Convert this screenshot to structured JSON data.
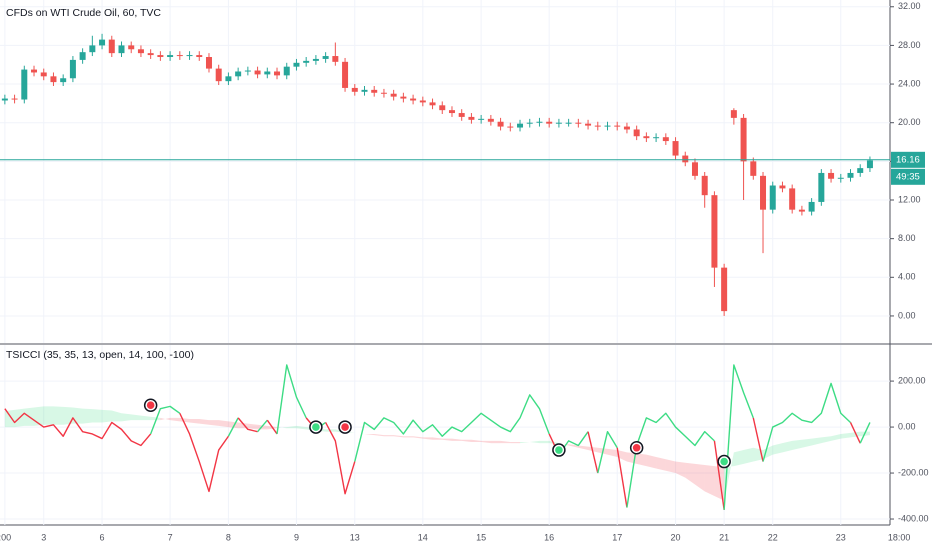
{
  "chart_data": [
    {
      "type": "candlestick",
      "title": "CFDs on WTI Crude Oil, 60, TVC",
      "categories": [
        ":00",
        null,
        null,
        null,
        "3",
        null,
        null,
        null,
        null,
        null,
        "6",
        null,
        null,
        null,
        null,
        null,
        null,
        "7",
        null,
        null,
        null,
        null,
        null,
        "8",
        null,
        null,
        null,
        null,
        null,
        null,
        "9",
        null,
        null,
        null,
        null,
        null,
        "13",
        null,
        null,
        null,
        null,
        null,
        null,
        "14",
        null,
        null,
        null,
        null,
        null,
        "15",
        null,
        null,
        null,
        null,
        null,
        null,
        "16",
        null,
        null,
        null,
        null,
        null,
        null,
        "17",
        null,
        null,
        null,
        null,
        null,
        "20",
        null,
        null,
        null,
        null,
        "21",
        null,
        null,
        null,
        null,
        "22",
        null,
        null,
        null,
        null,
        null,
        null,
        "23",
        null,
        null,
        null,
        null,
        null,
        "18:00"
      ],
      "open": [
        22.3,
        22.5,
        22.4,
        25.5,
        25.2,
        24.8,
        24.2,
        24.6,
        26.5,
        27.3,
        28,
        28.6,
        27.2,
        28,
        27.6,
        27.2,
        27,
        26.8,
        27,
        26.9,
        27,
        26.8,
        25.6,
        24.3,
        24.8,
        25.3,
        25.4,
        25,
        25.3,
        24.9,
        25.8,
        26.2,
        26.4,
        26.6,
        26.9,
        26.3,
        23.6,
        23.2,
        23.4,
        23.1,
        23,
        22.7,
        22.5,
        22.3,
        22.1,
        21.8,
        21.3,
        21,
        20.6,
        20.3,
        20.4,
        20.1,
        19.6,
        19.5,
        19.9,
        20,
        20.1,
        19.9,
        20,
        20,
        19.9,
        19.7,
        19.6,
        19.7,
        19.6,
        19.3,
        18.6,
        18.4,
        18.5,
        18.1,
        16.6,
        15.9,
        14.5,
        12.5,
        5,
        21.3,
        20.5,
        16,
        14.5,
        11,
        13.5,
        13.2,
        11,
        10.8,
        11.8,
        14.8,
        14.2,
        14.3,
        14.8,
        15.3,
        null,
        null,
        null
      ],
      "high": [
        22.9,
        22.9,
        25.9,
        25.9,
        25.6,
        25.2,
        25,
        26.9,
        27.7,
        29,
        29.2,
        29,
        28.4,
        28.4,
        28,
        27.6,
        27.4,
        27.4,
        27.4,
        27.4,
        27.4,
        27.2,
        26,
        25.2,
        25.7,
        25.8,
        25.8,
        25.7,
        25.7,
        26.2,
        26.6,
        26.8,
        27,
        27.3,
        28.3,
        26.7,
        24,
        23.8,
        23.8,
        23.5,
        23.4,
        23.1,
        22.9,
        22.7,
        22.5,
        22.2,
        21.7,
        21.4,
        21,
        20.8,
        20.8,
        20.5,
        20,
        20.3,
        20.4,
        20.5,
        20.5,
        20.4,
        20.4,
        20.4,
        20.3,
        20.1,
        20.1,
        20.1,
        20,
        19.7,
        19,
        18.9,
        18.9,
        18.5,
        17,
        16.3,
        14.9,
        12.9,
        5.4,
        21.5,
        20.9,
        16.4,
        14.9,
        13.9,
        13.9,
        13.6,
        11.4,
        12.2,
        15.2,
        15.2,
        14.7,
        15.2,
        15.7,
        16.5,
        null,
        null,
        null
      ],
      "low": [
        21.9,
        22,
        22,
        24.8,
        24.4,
        23.8,
        23.8,
        24.2,
        26.1,
        26.9,
        27.6,
        26.8,
        26.8,
        27.2,
        26.8,
        26.6,
        26.4,
        26.4,
        26.5,
        26.5,
        26.4,
        25.2,
        23.9,
        23.9,
        24.4,
        24.9,
        24.6,
        24.6,
        24.5,
        24.5,
        25.4,
        25.8,
        26,
        26.2,
        25.9,
        23.2,
        22.8,
        22.8,
        22.7,
        22.6,
        22.3,
        22.1,
        21.9,
        21.7,
        21.4,
        20.9,
        20.6,
        20.2,
        19.9,
        19.9,
        19.7,
        19.2,
        19.1,
        19.1,
        19.5,
        19.6,
        19.5,
        19.5,
        19.6,
        19.5,
        19.3,
        19.2,
        19.2,
        19.2,
        18.9,
        18.2,
        18,
        18,
        17.7,
        16.2,
        15.5,
        14.1,
        11.2,
        3,
        0,
        19.8,
        12,
        14.1,
        6.5,
        10.6,
        12.8,
        10.6,
        10.4,
        10.4,
        11.4,
        13.8,
        13.8,
        13.9,
        14.4,
        14.9,
        null,
        null,
        null
      ],
      "close": [
        22.5,
        22.4,
        25.5,
        25.2,
        24.8,
        24.2,
        24.6,
        26.5,
        27.3,
        28,
        28.6,
        27.2,
        28,
        27.6,
        27.2,
        27,
        26.8,
        27,
        26.9,
        27,
        26.8,
        25.6,
        24.3,
        24.8,
        25.3,
        25.4,
        25,
        25.3,
        24.9,
        25.8,
        26.2,
        26.4,
        26.6,
        26.9,
        26.3,
        23.6,
        23.2,
        23.4,
        23.1,
        23,
        22.7,
        22.5,
        22.3,
        22.1,
        21.8,
        21.3,
        21,
        20.6,
        20.3,
        20.4,
        20.1,
        19.6,
        19.5,
        19.9,
        20,
        20.1,
        19.9,
        20,
        20,
        19.9,
        19.7,
        19.6,
        19.7,
        19.6,
        19.3,
        18.6,
        18.4,
        18.5,
        18.1,
        16.6,
        15.9,
        14.5,
        12.5,
        5,
        0.5,
        20.5,
        16,
        14.5,
        11,
        13.5,
        13.2,
        11,
        10.8,
        11.8,
        14.8,
        14.2,
        14.3,
        14.8,
        15.3,
        16.1,
        null,
        null,
        null
      ],
      "up_color": "#26a69a",
      "down_color": "#ef5350",
      "last_price": 16.16,
      "last_price_color": "#26a69a",
      "countdown": "49:35",
      "ylim": [
        -2.8,
        32.7
      ],
      "yticks": [
        {
          "value": 0,
          "label": "0.00"
        },
        {
          "value": 4,
          "label": "4.00"
        },
        {
          "value": 8,
          "label": "8.00"
        },
        {
          "value": 12,
          "label": "12.00"
        },
        {
          "value": 16,
          "label": "16.00"
        },
        {
          "value": 20,
          "label": "20.00"
        },
        {
          "value": 24,
          "label": "24.00"
        },
        {
          "value": 28,
          "label": "28.00"
        },
        {
          "value": 32,
          "label": "32.00"
        }
      ],
      "grid": true
    },
    {
      "type": "line",
      "title": "TSICCI (35, 35, 13, open, 14, 100, -100)",
      "values": [
        80,
        20,
        60,
        30,
        0,
        10,
        -40,
        40,
        -20,
        -30,
        -50,
        20,
        -10,
        -60,
        -80,
        -30,
        80,
        90,
        60,
        -30,
        -150,
        -280,
        -100,
        -40,
        40,
        -10,
        -20,
        30,
        -30,
        270,
        130,
        40,
        -10,
        20,
        -60,
        -290,
        -150,
        20,
        -10,
        40,
        20,
        -30,
        30,
        -20,
        10,
        -40,
        0,
        -20,
        20,
        60,
        30,
        0,
        -20,
        40,
        140,
        80,
        -30,
        -120,
        -60,
        -80,
        -20,
        -200,
        -20,
        -90,
        -350,
        -80,
        40,
        20,
        60,
        0,
        -40,
        -80,
        -20,
        -60,
        -360,
        270,
        150,
        40,
        -150,
        0,
        20,
        60,
        30,
        20,
        60,
        190,
        60,
        20,
        -70,
        20,
        null,
        null,
        null
      ],
      "band_fast": [
        70,
        75,
        80,
        85,
        90,
        90,
        88,
        85,
        80,
        78,
        75,
        72,
        60,
        55,
        50,
        45,
        40,
        30,
        25,
        20,
        15,
        10,
        5,
        0,
        -5,
        -5,
        -10,
        -10,
        -5,
        0,
        5,
        0,
        -5,
        -10,
        -10,
        -20,
        -25,
        -30,
        -35,
        -40,
        -40,
        -45,
        -45,
        -50,
        -55,
        -55,
        -60,
        -60,
        -65,
        -65,
        -70,
        -70,
        -70,
        -70,
        -65,
        -60,
        -60,
        -70,
        -80,
        -90,
        -100,
        -110,
        -120,
        -130,
        -150,
        -160,
        -170,
        -180,
        -190,
        -200,
        -220,
        -250,
        -280,
        -300,
        -320,
        -110,
        -100,
        -90,
        -100,
        -80,
        -70,
        -60,
        -55,
        -50,
        -45,
        -40,
        -30,
        -25,
        -20,
        -20,
        null,
        null,
        null
      ],
      "band_slow": [
        0,
        0,
        5,
        5,
        10,
        10,
        10,
        15,
        15,
        20,
        20,
        25,
        25,
        30,
        30,
        30,
        30,
        40,
        40,
        35,
        35,
        30,
        30,
        25,
        20,
        15,
        10,
        5,
        0,
        -5,
        -5,
        -10,
        -15,
        -20,
        -20,
        -25,
        -25,
        -30,
        -30,
        -35,
        -35,
        -40,
        -40,
        -45,
        -45,
        -50,
        -50,
        -55,
        -55,
        -60,
        -60,
        -60,
        -65,
        -65,
        -65,
        -70,
        -70,
        -75,
        -75,
        -80,
        -85,
        -90,
        -95,
        -100,
        -110,
        -115,
        -120,
        -130,
        -140,
        -150,
        -155,
        -160,
        -165,
        -170,
        -175,
        -170,
        -160,
        -150,
        -140,
        -120,
        -110,
        -100,
        -90,
        -80,
        -70,
        -60,
        -50,
        -45,
        -40,
        -35,
        null,
        null,
        null
      ],
      "signals": [
        null,
        null,
        null,
        null,
        null,
        null,
        null,
        null,
        null,
        null,
        null,
        null,
        null,
        null,
        null,
        95,
        null,
        null,
        null,
        null,
        null,
        null,
        null,
        null,
        null,
        null,
        null,
        null,
        null,
        null,
        null,
        null,
        0,
        null,
        null,
        0,
        null,
        null,
        null,
        null,
        null,
        null,
        null,
        null,
        null,
        null,
        null,
        null,
        null,
        null,
        null,
        null,
        null,
        null,
        null,
        null,
        null,
        -100,
        null,
        null,
        null,
        null,
        null,
        null,
        null,
        -90,
        null,
        null,
        null,
        null,
        null,
        null,
        null,
        null,
        -150,
        null,
        null,
        null,
        null,
        null,
        null,
        null,
        null,
        null,
        null,
        null,
        null,
        null,
        null,
        null,
        null,
        null,
        null
      ],
      "signal_colors": [
        null,
        null,
        null,
        null,
        null,
        null,
        null,
        null,
        null,
        null,
        null,
        null,
        null,
        null,
        null,
        "#f23645",
        null,
        null,
        null,
        null,
        null,
        null,
        null,
        null,
        null,
        null,
        null,
        null,
        null,
        null,
        null,
        null,
        "#3ddc84",
        null,
        null,
        "#f23645",
        null,
        null,
        null,
        null,
        null,
        null,
        null,
        null,
        null,
        null,
        null,
        null,
        null,
        null,
        null,
        null,
        null,
        null,
        null,
        null,
        null,
        "#3ddc84",
        null,
        null,
        null,
        null,
        null,
        null,
        null,
        "#f23645",
        null,
        null,
        null,
        null,
        null,
        null,
        null,
        null,
        "#3ddc84",
        null,
        null,
        null,
        null,
        null,
        null,
        null,
        null,
        null,
        null,
        null,
        null,
        null,
        null,
        null,
        null,
        null,
        null
      ],
      "up_color": "#3ddc84",
      "down_color": "#f23645",
      "ylim": [
        -426,
        357
      ],
      "yticks": [
        {
          "value": 200,
          "label": "200.00"
        },
        {
          "value": 0,
          "label": "0.00"
        },
        {
          "value": -200,
          "label": "-200.00"
        },
        {
          "value": -400,
          "label": "-400.00"
        }
      ],
      "grid": true
    }
  ]
}
